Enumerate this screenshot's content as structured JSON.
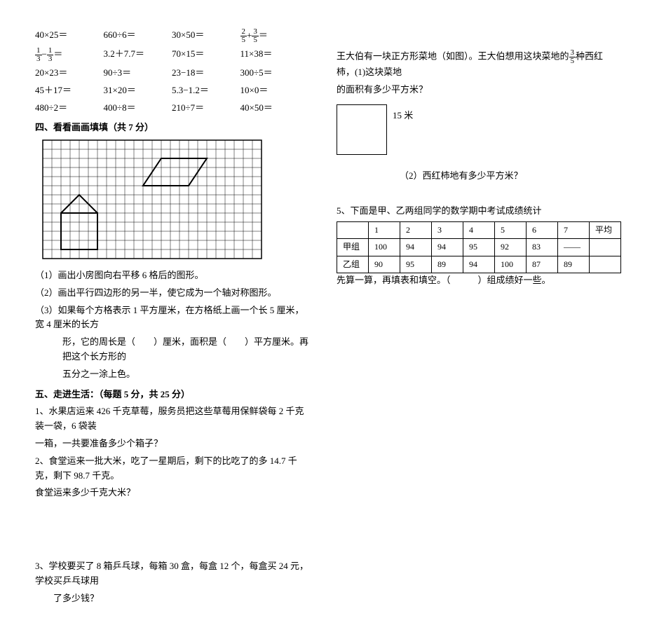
{
  "math_rows": [
    [
      {
        "type": "plain",
        "text": "40×25＝"
      },
      {
        "type": "plain",
        "text": "660÷6＝"
      },
      {
        "type": "plain",
        "text": "30×50＝"
      },
      {
        "type": "fsum",
        "a_n": "2",
        "a_d": "5",
        "op": "+",
        "b_n": "3",
        "b_d": "5",
        "tail": "＝"
      }
    ],
    [
      {
        "type": "fsum",
        "a_n": "1",
        "a_d": "3",
        "op": "−",
        "b_n": "1",
        "b_d": "3",
        "tail": "＝"
      },
      {
        "type": "plain",
        "text": "3.2＋7.7＝"
      },
      {
        "type": "plain",
        "text": "70×15＝"
      },
      {
        "type": "plain",
        "text": "11×38＝"
      }
    ],
    [
      {
        "type": "plain",
        "text": "20×23＝"
      },
      {
        "type": "plain",
        "text": "90÷3＝"
      },
      {
        "type": "plain",
        "text": "23−18＝"
      },
      {
        "type": "plain",
        "text": "300÷5＝"
      }
    ],
    [
      {
        "type": "plain",
        "text": "45＋17＝"
      },
      {
        "type": "plain",
        "text": "31×20＝"
      },
      {
        "type": "plain",
        "text": "5.3−1.2＝"
      },
      {
        "type": "plain",
        "text": "10×0＝"
      }
    ],
    [
      {
        "type": "plain",
        "text": "480÷2＝"
      },
      {
        "type": "plain",
        "text": "400÷8＝"
      },
      {
        "type": "plain",
        "text": "210÷7＝"
      },
      {
        "type": "plain",
        "text": "40×50＝"
      }
    ]
  ],
  "sec4_title": "四、看看画画填填（共 7 分）",
  "grid": {
    "cols": 24,
    "rows": 13,
    "cell": 13,
    "stroke": "#000000",
    "parallelogram": [
      [
        13,
        2
      ],
      [
        18,
        2
      ],
      [
        16,
        5
      ],
      [
        11,
        5
      ]
    ],
    "house_base": [
      [
        2,
        8
      ],
      [
        6,
        8
      ],
      [
        6,
        12
      ],
      [
        2,
        12
      ]
    ],
    "house_roof": [
      [
        2,
        8
      ],
      [
        4,
        6
      ],
      [
        6,
        8
      ]
    ]
  },
  "q4_1": "（1）画出小房图向右平移 6 格后的图形。",
  "q4_2": "（2）画出平行四边形的另一半，使它成为一个轴对称图形。",
  "q4_3a": "（3）如果每个方格表示 1 平方厘米，在方格纸上画一个长 5 厘米，宽 4 厘米的长方",
  "q4_3b": "形，它的周长是（　　）厘米，面积是（　　）平方厘米。再把这个长方形的",
  "q4_3c": "五分之一涂上色。",
  "sec5_title": "五、走进生活：（每题 5 分，共 25 分）",
  "q5_1a": "1、水果店运来 426 千克草莓，服务员把这些草莓用保鲜袋每 2 千克装一袋，6 袋装",
  "q5_1b": "一箱，一共要准备多少个箱子？",
  "q5_2a": "2、食堂运来一批大米，吃了一星期后，剩下的比吃了的多 14.7 千克，剩下 98.7 千克。",
  "q5_2b": "食堂运来多少千克大米？",
  "q5_3a": "3、学校要买了 8 箱乒乓球，每箱 30 盒，每盒 12 个，每盒买 24 元，学校买乒乓球用",
  "q5_3b": "了多少钱？",
  "right_intro_pre": "王大伯有一块正方形菜地（如图）。王大伯想用这块菜地的",
  "right_intro_frac_n": "3",
  "right_intro_frac_d": "5",
  "right_intro_post": "种西红柿，(1)这块菜地",
  "right_intro_line2": "的面积有多少平方米？",
  "sq_label": "15 米",
  "right_q2": "（2）西红柿地有多少平方米？",
  "tbl_title": "5、下面是甲、乙两组同学的数学期中考试成绩统计",
  "tbl": {
    "headers": [
      "",
      "1",
      "2",
      "3",
      "4",
      "5",
      "6",
      "7",
      "平均"
    ],
    "rows": [
      [
        "甲组",
        "100",
        "94",
        "94",
        "95",
        "92",
        "83",
        "——",
        ""
      ],
      [
        "乙组",
        "90",
        "95",
        "89",
        "94",
        "100",
        "87",
        "89",
        ""
      ]
    ]
  },
  "tbl_after": "先算一算，再填表和填空。（　　　）组成绩好一些。"
}
